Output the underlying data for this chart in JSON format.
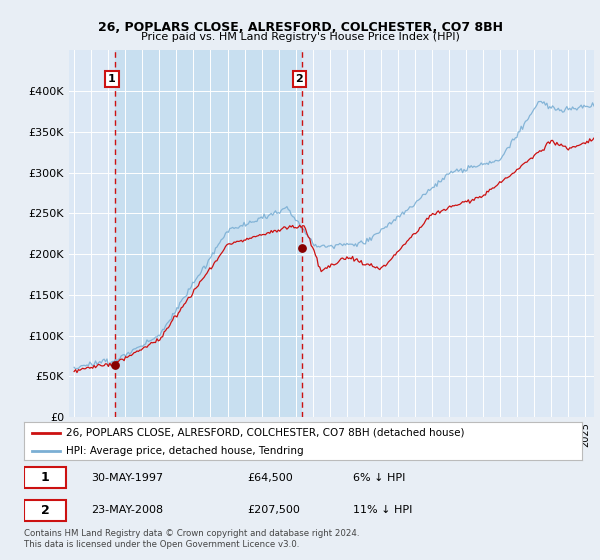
{
  "title1": "26, POPLARS CLOSE, ALRESFORD, COLCHESTER, CO7 8BH",
  "title2": "Price paid vs. HM Land Registry's House Price Index (HPI)",
  "legend_line1": "26, POPLARS CLOSE, ALRESFORD, COLCHESTER, CO7 8BH (detached house)",
  "legend_line2": "HPI: Average price, detached house, Tendring",
  "annotation1_date": "30-MAY-1997",
  "annotation1_price": "£64,500",
  "annotation1_hpi": "6% ↓ HPI",
  "annotation2_date": "23-MAY-2008",
  "annotation2_price": "£207,500",
  "annotation2_hpi": "11% ↓ HPI",
  "footer": "Contains HM Land Registry data © Crown copyright and database right 2024.\nThis data is licensed under the Open Government Licence v3.0.",
  "hpi_color": "#7bafd4",
  "price_color": "#cc1111",
  "dot_color": "#880000",
  "vline_color": "#cc1111",
  "bg_color": "#e8eef5",
  "plot_bg": "#dce8f5",
  "shade_color": "#c8dff0",
  "ylim": [
    0,
    450000
  ],
  "xlim_start": 1994.7,
  "xlim_end": 2025.5,
  "sale1_x": 1997.37,
  "sale1_y": 64500,
  "sale2_x": 2008.37,
  "sale2_y": 207500
}
